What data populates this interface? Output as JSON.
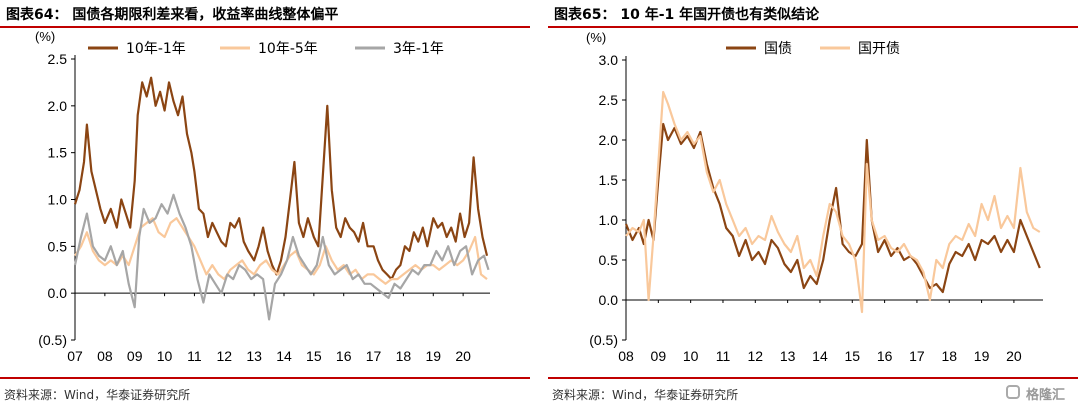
{
  "left": {
    "title": "图表64：  国债各期限利差来看，收益率曲线整体偏平",
    "source": "资料来源：Wind，华泰证券研究所"
  },
  "right": {
    "title": "图表65：  10 年-1 年国开债也有类似结论",
    "source": "资料来源：Wind，华泰证券研究所"
  },
  "watermark": "格隆汇",
  "chart_data": [
    {
      "type": "line",
      "title": "",
      "ylabel": "(%)",
      "ylim": [
        -0.5,
        2.5
      ],
      "yticks": [
        -0.5,
        0.0,
        0.5,
        1.0,
        1.5,
        2.0,
        2.5
      ],
      "ytick_labels": [
        "(0.5)",
        "0.0",
        "0.5",
        "1.0",
        "1.5",
        "2.0",
        "2.5"
      ],
      "xlim": [
        2007.0,
        2020.9
      ],
      "x_tick_labels": [
        "07",
        "08",
        "09",
        "10",
        "11",
        "12",
        "13",
        "14",
        "15",
        "16",
        "17",
        "18",
        "19",
        "20"
      ],
      "grid": false,
      "legend": "top",
      "series": [
        {
          "name": "10年-1年",
          "color": "#8b4513",
          "x": [
            2007.0,
            2007.15,
            2007.3,
            2007.4,
            2007.55,
            2007.7,
            2007.85,
            2008.0,
            2008.2,
            2008.4,
            2008.55,
            2008.7,
            2008.85,
            2009.0,
            2009.1,
            2009.25,
            2009.4,
            2009.55,
            2009.7,
            2009.85,
            2010.0,
            2010.15,
            2010.3,
            2010.45,
            2010.6,
            2010.75,
            2010.9,
            2011.0,
            2011.15,
            2011.3,
            2011.45,
            2011.6,
            2011.75,
            2011.9,
            2012.05,
            2012.2,
            2012.35,
            2012.5,
            2012.65,
            2012.8,
            2013.0,
            2013.15,
            2013.3,
            2013.45,
            2013.6,
            2013.75,
            2013.9,
            2014.05,
            2014.2,
            2014.35,
            2014.5,
            2014.65,
            2014.8,
            2015.0,
            2015.15,
            2015.3,
            2015.45,
            2015.6,
            2015.75,
            2015.9,
            2016.05,
            2016.2,
            2016.35,
            2016.5,
            2016.65,
            2016.8,
            2017.0,
            2017.15,
            2017.3,
            2017.45,
            2017.6,
            2017.75,
            2017.9,
            2018.05,
            2018.2,
            2018.35,
            2018.5,
            2018.65,
            2018.8,
            2019.0,
            2019.15,
            2019.3,
            2019.45,
            2019.6,
            2019.75,
            2019.9,
            2020.05,
            2020.2,
            2020.35,
            2020.5,
            2020.65,
            2020.8
          ],
          "values": [
            0.95,
            1.1,
            1.4,
            1.8,
            1.3,
            1.1,
            0.9,
            0.75,
            0.9,
            0.7,
            1.0,
            0.85,
            0.7,
            1.2,
            1.9,
            2.25,
            2.1,
            2.3,
            2.0,
            2.15,
            1.95,
            2.25,
            2.05,
            1.9,
            2.1,
            1.7,
            1.5,
            1.3,
            0.9,
            0.85,
            0.6,
            0.75,
            0.65,
            0.55,
            0.5,
            0.75,
            0.7,
            0.8,
            0.55,
            0.45,
            0.35,
            0.5,
            0.7,
            0.45,
            0.3,
            0.2,
            0.35,
            0.6,
            1.0,
            1.4,
            0.75,
            0.6,
            0.8,
            0.6,
            0.5,
            1.25,
            2.0,
            1.1,
            0.7,
            0.6,
            0.8,
            0.7,
            0.65,
            0.55,
            0.75,
            0.5,
            0.5,
            0.35,
            0.25,
            0.2,
            0.15,
            0.25,
            0.3,
            0.5,
            0.45,
            0.65,
            0.55,
            0.7,
            0.5,
            0.8,
            0.7,
            0.75,
            0.6,
            0.7,
            0.55,
            0.85,
            0.6,
            0.75,
            1.45,
            0.9,
            0.6,
            0.4
          ]
        },
        {
          "name": "10年-5年",
          "color": "#f9c89b",
          "x": [
            2007.0,
            2007.2,
            2007.4,
            2007.6,
            2007.8,
            2008.0,
            2008.2,
            2008.4,
            2008.6,
            2008.8,
            2009.0,
            2009.2,
            2009.4,
            2009.6,
            2009.8,
            2010.0,
            2010.2,
            2010.4,
            2010.6,
            2010.8,
            2011.0,
            2011.2,
            2011.4,
            2011.6,
            2011.8,
            2012.0,
            2012.2,
            2012.4,
            2012.6,
            2012.8,
            2013.0,
            2013.2,
            2013.4,
            2013.6,
            2013.8,
            2014.0,
            2014.2,
            2014.4,
            2014.6,
            2014.8,
            2015.0,
            2015.2,
            2015.4,
            2015.6,
            2015.8,
            2016.0,
            2016.2,
            2016.4,
            2016.6,
            2016.8,
            2017.0,
            2017.2,
            2017.4,
            2017.6,
            2017.8,
            2018.0,
            2018.2,
            2018.4,
            2018.6,
            2018.8,
            2019.0,
            2019.2,
            2019.4,
            2019.6,
            2019.8,
            2020.0,
            2020.2,
            2020.4,
            2020.6,
            2020.8
          ],
          "values": [
            0.4,
            0.5,
            0.65,
            0.45,
            0.35,
            0.3,
            0.35,
            0.3,
            0.4,
            0.3,
            0.5,
            0.7,
            0.75,
            0.8,
            0.65,
            0.6,
            0.75,
            0.8,
            0.7,
            0.6,
            0.5,
            0.35,
            0.2,
            0.3,
            0.2,
            0.15,
            0.25,
            0.3,
            0.35,
            0.25,
            0.2,
            0.3,
            0.35,
            0.25,
            0.2,
            0.3,
            0.4,
            0.45,
            0.3,
            0.25,
            0.2,
            0.3,
            0.5,
            0.35,
            0.25,
            0.3,
            0.2,
            0.25,
            0.15,
            0.2,
            0.2,
            0.15,
            0.1,
            0.15,
            0.15,
            0.2,
            0.25,
            0.3,
            0.25,
            0.3,
            0.3,
            0.25,
            0.3,
            0.35,
            0.3,
            0.35,
            0.45,
            0.6,
            0.2,
            0.15
          ]
        },
        {
          "name": "3年-1年",
          "color": "#a6a6a6",
          "x": [
            2007.0,
            2007.2,
            2007.4,
            2007.6,
            2007.8,
            2008.0,
            2008.2,
            2008.4,
            2008.6,
            2008.8,
            2009.0,
            2009.15,
            2009.3,
            2009.5,
            2009.7,
            2009.9,
            2010.1,
            2010.3,
            2010.5,
            2010.7,
            2010.9,
            2011.1,
            2011.3,
            2011.5,
            2011.7,
            2011.9,
            2012.1,
            2012.3,
            2012.5,
            2012.7,
            2012.9,
            2013.1,
            2013.3,
            2013.5,
            2013.7,
            2013.9,
            2014.1,
            2014.3,
            2014.5,
            2014.7,
            2014.9,
            2015.1,
            2015.3,
            2015.5,
            2015.7,
            2015.9,
            2016.1,
            2016.3,
            2016.5,
            2016.7,
            2016.9,
            2017.1,
            2017.3,
            2017.5,
            2017.7,
            2017.9,
            2018.1,
            2018.3,
            2018.5,
            2018.7,
            2018.9,
            2019.1,
            2019.3,
            2019.5,
            2019.7,
            2019.9,
            2020.1,
            2020.3,
            2020.5,
            2020.7,
            2020.85
          ],
          "values": [
            0.3,
            0.6,
            0.85,
            0.5,
            0.4,
            0.35,
            0.5,
            0.3,
            0.45,
            0.1,
            -0.15,
            0.6,
            0.9,
            0.75,
            0.8,
            0.95,
            0.85,
            1.05,
            0.85,
            0.7,
            0.5,
            0.15,
            -0.1,
            0.2,
            0.1,
            0.0,
            0.2,
            0.15,
            0.3,
            0.25,
            0.15,
            0.2,
            0.15,
            -0.28,
            0.1,
            0.2,
            0.35,
            0.6,
            0.4,
            0.3,
            0.2,
            0.3,
            0.6,
            0.3,
            0.2,
            0.25,
            0.3,
            0.15,
            0.2,
            0.1,
            0.1,
            0.05,
            0.0,
            -0.05,
            0.1,
            0.05,
            0.15,
            0.25,
            0.2,
            0.3,
            0.3,
            0.45,
            0.35,
            0.5,
            0.3,
            0.45,
            0.5,
            0.2,
            0.35,
            0.4,
            0.25
          ]
        }
      ]
    },
    {
      "type": "line",
      "title": "",
      "ylabel": "(%)",
      "ylim": [
        -0.5,
        3.0
      ],
      "yticks": [
        -0.5,
        0.0,
        0.5,
        1.0,
        1.5,
        2.0,
        2.5,
        3.0
      ],
      "ytick_labels": [
        "(0.5)",
        "0.0",
        "0.5",
        "1.0",
        "1.5",
        "2.0",
        "2.5",
        "3.0"
      ],
      "xlim": [
        2008.0,
        2020.9
      ],
      "x_tick_labels": [
        "08",
        "09",
        "10",
        "11",
        "12",
        "13",
        "14",
        "15",
        "16",
        "17",
        "18",
        "19",
        "20"
      ],
      "grid": false,
      "legend": "top",
      "series": [
        {
          "name": "国债",
          "color": "#8b4513",
          "x": [
            2008.0,
            2008.2,
            2008.4,
            2008.55,
            2008.7,
            2008.85,
            2009.0,
            2009.15,
            2009.3,
            2009.5,
            2009.7,
            2009.9,
            2010.1,
            2010.3,
            2010.5,
            2010.7,
            2010.9,
            2011.1,
            2011.3,
            2011.5,
            2011.7,
            2011.9,
            2012.1,
            2012.3,
            2012.5,
            2012.7,
            2012.9,
            2013.1,
            2013.3,
            2013.5,
            2013.7,
            2013.9,
            2014.1,
            2014.3,
            2014.5,
            2014.7,
            2014.9,
            2015.1,
            2015.3,
            2015.45,
            2015.6,
            2015.8,
            2016.0,
            2016.2,
            2016.4,
            2016.6,
            2016.8,
            2017.0,
            2017.2,
            2017.4,
            2017.6,
            2017.8,
            2018.0,
            2018.2,
            2018.4,
            2018.6,
            2018.8,
            2019.0,
            2019.2,
            2019.4,
            2019.6,
            2019.8,
            2020.0,
            2020.2,
            2020.4,
            2020.6,
            2020.8
          ],
          "values": [
            0.95,
            0.75,
            0.9,
            0.7,
            1.0,
            0.75,
            1.5,
            2.2,
            2.0,
            2.15,
            1.95,
            2.05,
            1.9,
            2.1,
            1.7,
            1.4,
            1.2,
            0.9,
            0.8,
            0.55,
            0.75,
            0.5,
            0.6,
            0.45,
            0.75,
            0.65,
            0.45,
            0.35,
            0.5,
            0.15,
            0.3,
            0.2,
            0.5,
            1.0,
            1.4,
            0.7,
            0.6,
            0.55,
            0.7,
            2.0,
            1.0,
            0.6,
            0.75,
            0.55,
            0.65,
            0.5,
            0.55,
            0.45,
            0.3,
            0.15,
            0.2,
            0.1,
            0.45,
            0.6,
            0.55,
            0.7,
            0.5,
            0.75,
            0.7,
            0.8,
            0.6,
            0.75,
            0.6,
            1.0,
            0.8,
            0.6,
            0.4
          ]
        },
        {
          "name": "国开债",
          "color": "#f9c89b",
          "x": [
            2008.0,
            2008.2,
            2008.4,
            2008.55,
            2008.7,
            2008.85,
            2009.0,
            2009.15,
            2009.3,
            2009.5,
            2009.7,
            2009.9,
            2010.1,
            2010.3,
            2010.5,
            2010.7,
            2010.9,
            2011.1,
            2011.3,
            2011.5,
            2011.7,
            2011.9,
            2012.1,
            2012.3,
            2012.5,
            2012.7,
            2012.9,
            2013.1,
            2013.3,
            2013.5,
            2013.7,
            2013.9,
            2014.1,
            2014.3,
            2014.5,
            2014.7,
            2014.9,
            2015.1,
            2015.3,
            2015.45,
            2015.6,
            2015.8,
            2016.0,
            2016.2,
            2016.4,
            2016.6,
            2016.8,
            2017.0,
            2017.2,
            2017.4,
            2017.6,
            2017.8,
            2018.0,
            2018.2,
            2018.4,
            2018.6,
            2018.8,
            2019.0,
            2019.2,
            2019.4,
            2019.6,
            2019.8,
            2020.0,
            2020.2,
            2020.4,
            2020.6,
            2020.8
          ],
          "values": [
            0.8,
            0.9,
            0.85,
            1.0,
            0.0,
            0.8,
            1.7,
            2.6,
            2.45,
            2.2,
            2.0,
            2.1,
            1.95,
            2.05,
            1.6,
            1.35,
            1.5,
            1.2,
            1.0,
            0.8,
            0.9,
            0.7,
            0.8,
            0.75,
            1.05,
            0.85,
            0.7,
            0.6,
            0.8,
            0.4,
            0.5,
            0.3,
            0.8,
            1.2,
            1.1,
            0.8,
            0.7,
            0.5,
            -0.15,
            1.7,
            1.0,
            0.75,
            0.8,
            0.65,
            0.6,
            0.7,
            0.55,
            0.5,
            0.35,
            0.0,
            0.5,
            0.4,
            0.7,
            0.8,
            0.75,
            0.95,
            0.8,
            1.2,
            1.0,
            1.3,
            0.9,
            1.05,
            0.9,
            1.65,
            1.1,
            0.9,
            0.85
          ]
        }
      ]
    }
  ]
}
